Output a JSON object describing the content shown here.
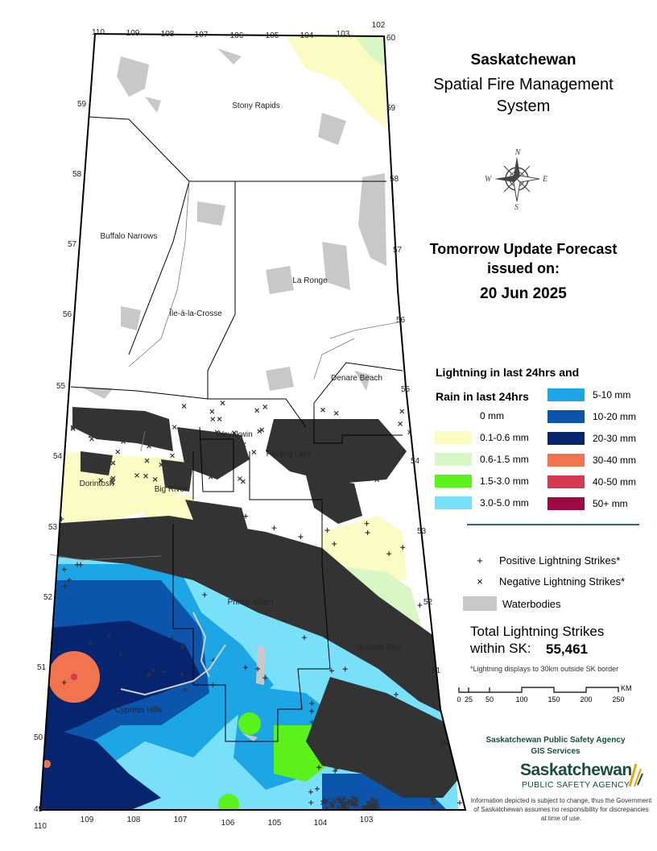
{
  "header": {
    "title": "Saskatchewan",
    "subtitle_line1": "Spatial Fire Management",
    "subtitle_line2": "System"
  },
  "forecast": {
    "line1": "Tomorrow Update Forecast",
    "line2": "issued on:",
    "date": "20 Jun 2025"
  },
  "compass": {
    "icon": "compass-rose-icon",
    "n": "N",
    "e": "E",
    "s": "S",
    "w": "W"
  },
  "legend": {
    "lightning_heading": "Lightning in last 24hrs and",
    "rain_heading": "Rain in last 24hrs",
    "rain_classes": [
      {
        "label": "0 mm",
        "color": "#ffffff"
      },
      {
        "label": "0.1-0.6 mm",
        "color": "#fdfbc4"
      },
      {
        "label": "0.6-1.5 mm",
        "color": "#d8f7c4"
      },
      {
        "label": "1.5-3.0 mm",
        "color": "#5af21a"
      },
      {
        "label": "3.0-5.0 mm",
        "color": "#79e0fa"
      },
      {
        "label": "5-10 mm",
        "color": "#1da6e6"
      },
      {
        "label": "10-20 mm",
        "color": "#0b55ad"
      },
      {
        "label": "20-30 mm",
        "color": "#06256e"
      },
      {
        "label": "30-40 mm",
        "color": "#f2744c"
      },
      {
        "label": "40-50 mm",
        "color": "#d4394f"
      },
      {
        "label": "50+ mm",
        "color": "#9b0a45"
      }
    ],
    "symbols": [
      {
        "glyph": "+",
        "label": "Positive Lightning Strikes*"
      },
      {
        "glyph": "×",
        "label": "Negative Lightning Strikes*"
      },
      {
        "glyph": "",
        "label": "Waterbodies",
        "color": "#c8c8c8"
      }
    ]
  },
  "totals": {
    "line1": "Total Lightning Strikes",
    "line2": "within SK:",
    "value": "55,461",
    "note": "*Lightning displays to 30km outside SK border"
  },
  "scale_bar": {
    "ticks": [
      "0",
      "25",
      "50",
      "100",
      "150",
      "200",
      "250"
    ],
    "unit": "KM"
  },
  "footer": {
    "agency_line1": "Saskatchewan Public Safety Agency",
    "agency_line2": "GIS  Services",
    "logo_main": "Saskatchewan",
    "logo_sub": "PUBLIC SAFETY AGENCY",
    "disclaimer": "Information depicted is subject to change, thus the Government of Saskatchewan assumes no responsibility for discrepancies at time of use."
  },
  "map": {
    "places": [
      "Stony Rapids",
      "Buffalo Narrows",
      "La Ronge",
      "Île-à-la-Crosse",
      "Denare Beach",
      "Weyakwin",
      "Lac la Ronge",
      "Fishing Lake",
      "Dorintosh",
      "Big River",
      "Prince Albert",
      "Hudson Bay",
      "Cypress Hills"
    ],
    "longitudes_top": [
      "110",
      "109",
      "108",
      "107",
      "106",
      "105",
      "104",
      "103",
      "102"
    ],
    "longitudes_bottom": [
      "110",
      "109",
      "108",
      "107",
      "106",
      "105",
      "104",
      "103"
    ],
    "latitudes_right": [
      "60",
      "59",
      "58",
      "57",
      "56",
      "55",
      "54",
      "53",
      "52",
      "51",
      "50"
    ],
    "latitudes_left": [
      "59",
      "58",
      "57",
      "56",
      "55",
      "54",
      "53",
      "52",
      "51",
      "50",
      "49"
    ]
  },
  "colors": {
    "lightning": "#333333",
    "border": "#000000",
    "waterbody": "#c8c8c8"
  }
}
